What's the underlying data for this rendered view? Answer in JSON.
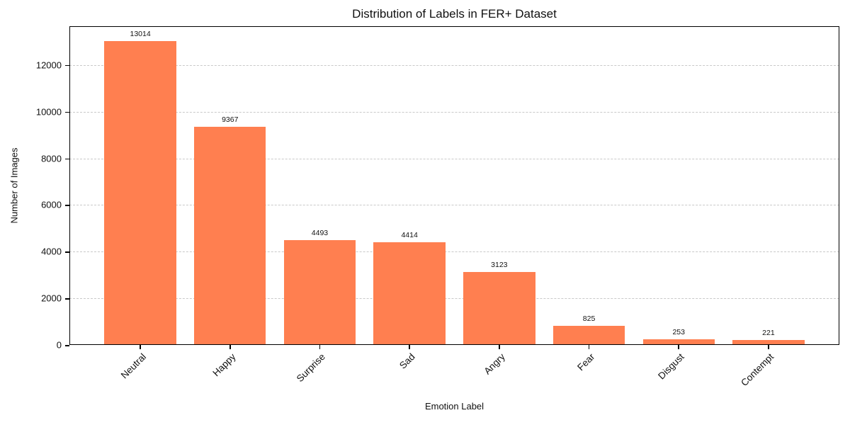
{
  "chart_data": {
    "type": "bar",
    "title": "Distribution of Labels in FER+ Dataset",
    "xlabel": "Emotion Label",
    "ylabel": "Number of Images",
    "categories": [
      "Neutral",
      "Happy",
      "Surprise",
      "Sad",
      "Angry",
      "Fear",
      "Disgust",
      "Contempt"
    ],
    "values": [
      13014,
      9367,
      4493,
      4414,
      3123,
      825,
      253,
      221
    ],
    "value_labels": [
      "13014",
      "9367",
      "4493",
      "4414",
      "3123",
      "825",
      "253",
      "221"
    ],
    "yticks": [
      0,
      2000,
      4000,
      6000,
      8000,
      10000,
      12000
    ],
    "ylim": [
      0,
      13665
    ],
    "bar_color": "#FF7F50",
    "grid": "horizontal-dashed",
    "gridline_color": "#c9c9c9",
    "spine_color": "#000000",
    "text_color": "#111111",
    "xtick_rotation_deg": 45,
    "legend": "none"
  }
}
